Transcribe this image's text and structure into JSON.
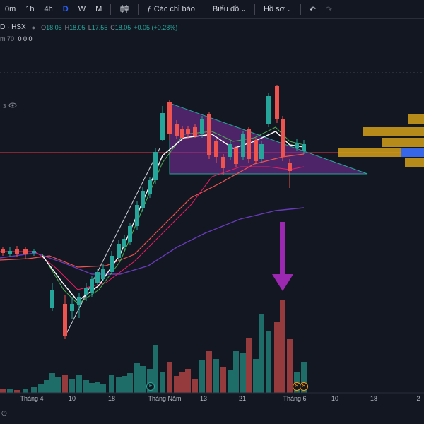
{
  "toolbar": {
    "intervals": [
      "0m",
      "1h",
      "4h",
      "D",
      "W",
      "M"
    ],
    "active_interval": "D",
    "indicators_label": "Các chỉ báo",
    "chart_type_label": "Biểu đồ",
    "profile_label": "Hồ sơ",
    "icons": [
      "candles-icon",
      "function-icon",
      "undo-icon",
      "redo-icon"
    ]
  },
  "legend": {
    "symbol": "D · HSX",
    "o_label": "O",
    "o": "18.05",
    "h_label": "H",
    "h": "18.05",
    "l_label": "L",
    "l": "17.55",
    "c_label": "C",
    "c": "18.05",
    "change": "+0.05 (+0.28%)",
    "line2_prefix": "m 70",
    "line2_values": "0 0 0",
    "line3_value": "3"
  },
  "colors": {
    "up": "#26a69a",
    "down": "#ef5350",
    "triangle_fill": "#7b2fa0",
    "triangle_stroke": "#26a69a",
    "arrow": "#9c27b0",
    "profile": "#d4a017",
    "profile_accent": "#2962ff",
    "price_line": "#f23645"
  },
  "xaxis": {
    "labels": [
      "Tháng 4",
      "10",
      "18",
      "Tháng Năm",
      "13",
      "21",
      "Tháng 6",
      "10",
      "18",
      "2"
    ]
  },
  "events": [
    {
      "label": "F",
      "color": "#26a69a"
    },
    {
      "label": "S",
      "color": "#ff9800"
    },
    {
      "label": "S",
      "color": "#ff9800"
    }
  ]
}
